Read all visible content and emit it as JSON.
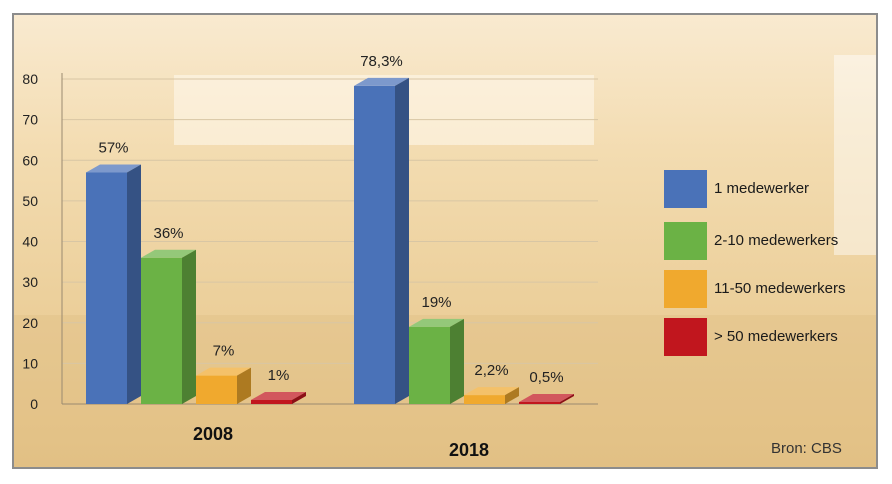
{
  "chart_data": {
    "type": "bar",
    "title": "",
    "xlabel": "",
    "ylabel": "",
    "ylim": [
      0,
      80
    ],
    "yticks": [
      0,
      10,
      20,
      30,
      40,
      50,
      60,
      70,
      80
    ],
    "grid": true,
    "legend_position": "right",
    "categories": [
      "2008",
      "2018"
    ],
    "series": [
      {
        "name": "1 medewerker",
        "color": "#4a72b8",
        "values": [
          57,
          78.3
        ],
        "labels": [
          "57%",
          "78,3%"
        ]
      },
      {
        "name": "2-10 medewerkers",
        "color": "#6bb245",
        "values": [
          36,
          19
        ],
        "labels": [
          "36%",
          "19%"
        ]
      },
      {
        "name": "11-50 medewerkers",
        "color": "#f0a92e",
        "values": [
          7,
          2.2
        ],
        "labels": [
          "7%",
          "2,2%"
        ]
      },
      {
        "name": "> 50 medewerkers",
        "color": "#c1161e",
        "values": [
          1,
          0.5
        ],
        "labels": [
          "1%",
          "0,5%"
        ]
      }
    ],
    "source": "Bron: CBS"
  }
}
